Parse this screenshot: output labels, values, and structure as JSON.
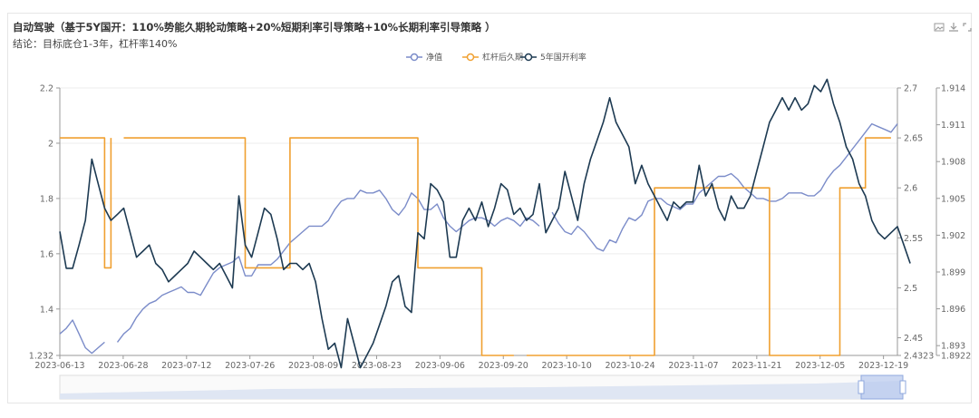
{
  "header": {
    "title": "自动驾驶（基于5Y国开：110%势能久期轮动策略+20%短期利率引导策略+10%长期利率引导策略 ）",
    "subtitle": "结论：目标底仓1-3年，杠杆率140%"
  },
  "toolbar": {
    "save_image_icon": "image-icon",
    "download_icon": "download-icon",
    "fullscreen_icon": "expand-icon"
  },
  "colors": {
    "nav": "#7b8cc9",
    "leverage": "#f0a030",
    "rate": "#1d3a52",
    "axis": "#999999",
    "grid": "#eeeeee",
    "zoom_fill": "#dfe6f3",
    "zoom_handle": "#b8c9ee"
  },
  "chart_data": {
    "type": "line",
    "title": "",
    "x_labels": [
      "2023-06-13",
      "2023-06-28",
      "2023-07-12",
      "2023-07-26",
      "2023-08-09",
      "2023-08-23",
      "2023-09-06",
      "2023-09-20",
      "2023-10-10",
      "2023-10-24",
      "2023-11-07",
      "2023-11-21",
      "2023-12-05",
      "2023-12-19"
    ],
    "legend": [
      "净值",
      "杠杆后久期",
      "5年国开利率"
    ],
    "y_axes": [
      {
        "position": "left",
        "min": 1.232,
        "max": 2.2,
        "ticks": [
          "2.2",
          "2",
          "1.8",
          "1.6",
          "1.4",
          "1.232"
        ]
      },
      {
        "position": "right-inner",
        "min": 2.4323,
        "max": 2.7,
        "ticks": [
          "2.7",
          "2.65",
          "2.6",
          "2.55",
          "2.5",
          "2.45",
          "2.4323"
        ]
      },
      {
        "position": "right-outer",
        "min": 1.8922,
        "max": 1.914,
        "ticks": [
          "1.914",
          "1.911",
          "1.908",
          "1.905",
          "1.902",
          "1.899",
          "1.896",
          "1.893",
          "1.8922"
        ]
      }
    ],
    "series": [
      {
        "name": "净值",
        "axis": 0,
        "values": [
          1.31,
          1.33,
          1.36,
          1.31,
          1.26,
          1.24,
          1.26,
          1.28,
          null,
          1.28,
          1.31,
          1.33,
          1.37,
          1.4,
          1.42,
          1.43,
          1.45,
          1.46,
          1.47,
          1.48,
          1.46,
          1.46,
          1.45,
          1.49,
          1.53,
          1.55,
          1.56,
          1.57,
          1.59,
          1.52,
          1.52,
          1.56,
          1.56,
          1.56,
          1.58,
          1.61,
          1.64,
          1.66,
          1.68,
          1.7,
          1.7,
          1.7,
          1.72,
          1.76,
          1.79,
          1.8,
          1.8,
          1.83,
          1.82,
          1.82,
          1.83,
          1.8,
          1.76,
          1.74,
          1.77,
          1.82,
          1.8,
          1.76,
          1.76,
          1.78,
          1.73,
          1.7,
          1.68,
          1.7,
          1.72,
          1.73,
          1.73,
          1.72,
          1.7,
          1.72,
          1.73,
          1.72,
          1.7,
          1.73,
          1.72,
          1.7,
          null,
          1.75,
          1.71,
          1.68,
          1.67,
          1.7,
          1.68,
          1.65,
          1.62,
          1.61,
          1.65,
          1.64,
          1.69,
          1.73,
          1.72,
          1.74,
          1.79,
          1.8,
          1.8,
          1.78,
          1.77,
          1.76,
          1.78,
          1.78,
          1.82,
          1.84,
          1.86,
          1.88,
          1.88,
          1.89,
          1.87,
          1.84,
          1.82,
          1.8,
          1.8,
          1.79,
          1.79,
          1.8,
          1.82,
          1.82,
          1.82,
          1.81,
          1.81,
          1.83,
          1.87,
          1.9,
          1.92,
          1.95,
          1.98,
          2.01,
          2.04,
          2.07,
          2.06,
          2.05,
          2.04,
          2.07
        ]
      },
      {
        "name": "杠杆后久期",
        "axis": 1,
        "values": [
          2.65,
          2.65,
          2.65,
          2.65,
          2.65,
          2.65,
          2.65,
          2.52,
          2.65,
          null,
          2.65,
          2.65,
          2.65,
          2.65,
          2.65,
          2.65,
          2.65,
          2.65,
          2.65,
          2.65,
          2.65,
          2.65,
          2.65,
          2.65,
          2.65,
          2.65,
          2.65,
          2.65,
          2.65,
          2.52,
          2.52,
          2.52,
          2.52,
          2.52,
          2.52,
          2.52,
          2.65,
          2.65,
          2.65,
          2.65,
          2.65,
          2.65,
          2.65,
          2.65,
          2.65,
          2.65,
          2.65,
          2.65,
          2.65,
          2.65,
          2.65,
          2.65,
          2.65,
          2.65,
          2.65,
          2.65,
          2.52,
          2.52,
          2.52,
          2.52,
          2.52,
          2.52,
          2.52,
          2.52,
          2.52,
          2.52,
          2.4323,
          2.4323,
          2.4323,
          2.4323,
          2.4323,
          2.4323,
          null,
          2.4323,
          2.4323,
          2.4323,
          2.4323,
          2.4323,
          2.4323,
          2.4323,
          2.4323,
          2.4323,
          2.4323,
          2.4323,
          2.4323,
          2.4323,
          2.4323,
          2.4323,
          2.4323,
          2.4323,
          2.4323,
          2.4323,
          2.4323,
          2.6,
          2.6,
          2.6,
          2.6,
          2.6,
          2.6,
          2.6,
          2.6,
          2.6,
          2.6,
          2.6,
          2.6,
          2.6,
          2.6,
          2.6,
          2.6,
          2.6,
          2.6,
          2.4323,
          2.4323,
          2.4323,
          2.4323,
          2.4323,
          2.4323,
          2.4323,
          2.4323,
          2.4323,
          2.4323,
          2.4323,
          2.6,
          2.6,
          2.6,
          2.6,
          2.65,
          2.65,
          2.65,
          2.65,
          2.65
        ]
      },
      {
        "name": "5年国开利率",
        "axis": 2,
        "values": [
          1.9023,
          1.8993,
          1.8993,
          1.9012,
          1.9032,
          1.9082,
          1.9062,
          1.9042,
          1.9032,
          1.9037,
          1.9042,
          1.9022,
          1.9002,
          1.9007,
          1.9012,
          1.8997,
          1.8992,
          1.8982,
          1.8987,
          1.8992,
          1.8997,
          1.9007,
          1.9002,
          1.8997,
          1.8992,
          1.8997,
          1.8987,
          1.8977,
          1.9052,
          1.9012,
          1.9002,
          1.9022,
          1.9042,
          1.9037,
          1.9017,
          1.8992,
          1.8997,
          1.8997,
          1.8992,
          1.8997,
          1.8982,
          1.8952,
          1.8927,
          1.8932,
          1.8912,
          1.8952,
          1.8932,
          1.8912,
          1.8922,
          1.8932,
          1.8947,
          1.8962,
          1.8982,
          1.8987,
          1.8962,
          1.8957,
          1.9022,
          1.9017,
          1.9062,
          1.9057,
          1.9047,
          1.9002,
          1.9002,
          1.9032,
          1.9042,
          1.9032,
          1.9047,
          1.9027,
          1.9042,
          1.9062,
          1.9057,
          1.9037,
          1.9042,
          1.9032,
          1.9037,
          1.9062,
          1.9022,
          1.9032,
          1.9042,
          1.9072,
          1.9052,
          1.9032,
          1.9062,
          1.9082,
          1.9097,
          1.9112,
          1.9132,
          1.9112,
          1.9102,
          1.9092,
          1.9062,
          1.9077,
          1.9062,
          1.9052,
          1.9042,
          1.9032,
          1.9047,
          1.9042,
          1.9047,
          1.9047,
          1.9077,
          1.9052,
          1.9062,
          1.9042,
          1.9032,
          1.9052,
          1.9042,
          1.9042,
          1.9052,
          1.9072,
          1.9092,
          1.9112,
          1.9122,
          1.9132,
          1.9122,
          1.9132,
          1.9122,
          1.9127,
          1.9142,
          1.9137,
          1.9147,
          1.9127,
          1.9112,
          1.9092,
          1.9082,
          1.9062,
          1.9052,
          1.9032,
          1.9022,
          1.9017,
          1.9022,
          1.9027,
          1.9012,
          1.8997
        ]
      }
    ],
    "grid": true,
    "legend_position": "top-center"
  }
}
